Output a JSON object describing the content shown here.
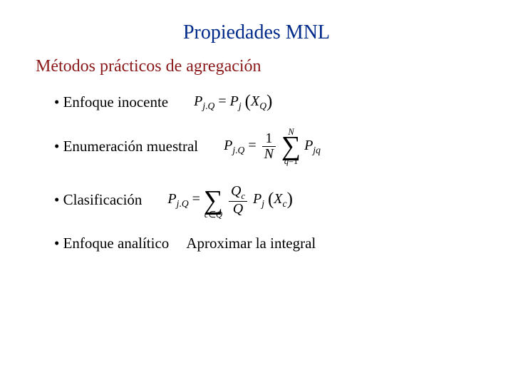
{
  "colors": {
    "title": "#002a8a",
    "subtitle": "#8a1818",
    "body": "#000000"
  },
  "fontsizes": {
    "title_pt": 28,
    "subtitle_pt": 24,
    "body_pt": 21,
    "formula_pt": 20
  },
  "title": "Propiedades MNL",
  "subtitle": "Métodos prácticos de agregación",
  "items": [
    {
      "label": "Enfoque inocente"
    },
    {
      "label": "Enumeración muestral"
    },
    {
      "label": "Clasificación"
    },
    {
      "label": "Enfoque analítico",
      "extra": "Aproximar la integral"
    }
  ],
  "formulas": {
    "f1": {
      "lhs_main": "P",
      "lhs_sub1": "j",
      "lhs_sub2": "Q",
      "rhs_main": "P",
      "rhs_sub": "j",
      "arg_main": "X",
      "arg_sub": "Q"
    },
    "f2": {
      "lhs_main": "P",
      "lhs_sub1": "j",
      "lhs_sub2": "Q",
      "frac_num": "1",
      "frac_den": "N",
      "sum_top": "N",
      "sum_bot_var": "q",
      "sum_bot_eq": "=1",
      "term_main": "P",
      "term_sub1": "j",
      "term_sub2": "q"
    },
    "f3": {
      "lhs_main": "P",
      "lhs_sub1": "j",
      "lhs_sub2": "Q",
      "sum_bot_var": "c",
      "sum_bot_rel": "∈",
      "sum_bot_set": "Q",
      "frac_num_main": "Q",
      "frac_num_sub": "c",
      "frac_den": "Q",
      "term_main": "P",
      "term_sub": "j",
      "arg_main": "X",
      "arg_sub": "c"
    }
  }
}
